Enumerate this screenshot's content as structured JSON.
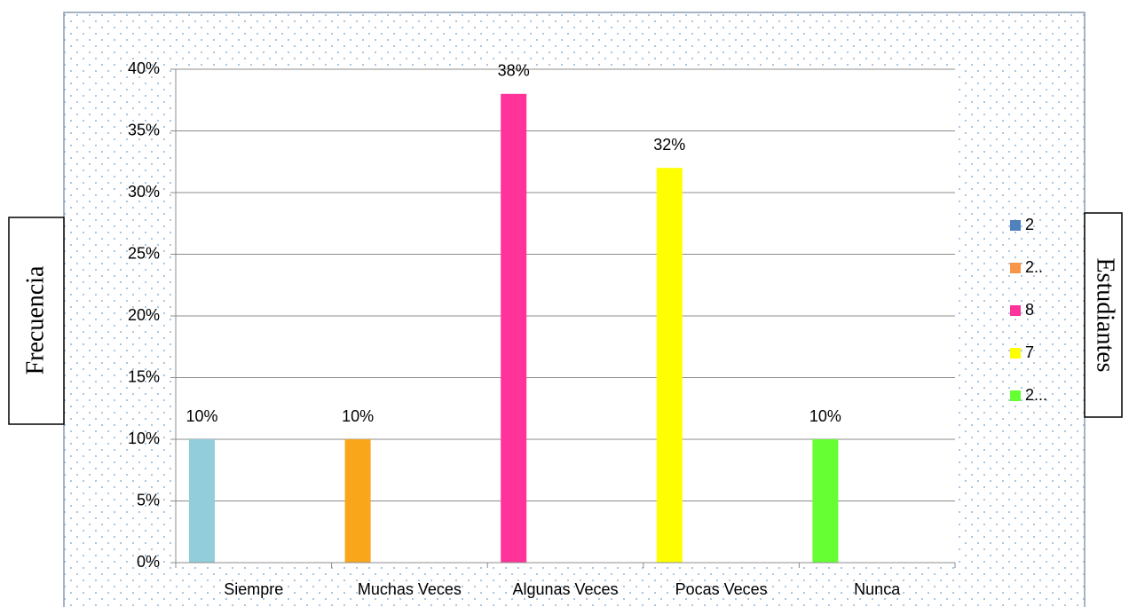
{
  "chart_data": {
    "type": "bar",
    "y_label": "Frecuencia",
    "side_label": "Estudiantes",
    "categories": [
      "Siempre",
      "Muchas Veces",
      "Algunas Veces",
      "Pocas Veces",
      "Nunca"
    ],
    "values": [
      10,
      10,
      38,
      32,
      10
    ],
    "value_labels": [
      "10%",
      "10%",
      "38%",
      "32%",
      "10%"
    ],
    "colors": [
      "#92cddc",
      "#f9a61a",
      "#ff3399",
      "#ffff00",
      "#66ff33"
    ],
    "ylim": [
      0,
      40
    ],
    "yticks": [
      {
        "value": 0,
        "label": "0%"
      },
      {
        "value": 5,
        "label": "5%"
      },
      {
        "value": 10,
        "label": "10%"
      },
      {
        "value": 15,
        "label": "15%"
      },
      {
        "value": 20,
        "label": "20%"
      },
      {
        "value": 25,
        "label": "25%"
      },
      {
        "value": 30,
        "label": "30%"
      },
      {
        "value": 35,
        "label": "35%"
      },
      {
        "value": 40,
        "label": "40%"
      }
    ],
    "grid": true,
    "legend": {
      "position": "right",
      "entries": [
        {
          "name": "2",
          "color": "#4f81bd"
        },
        {
          "name": "2..",
          "color": "#f79646"
        },
        {
          "name": "8",
          "color": "#ff3399"
        },
        {
          "name": "7",
          "color": "#ffff00"
        },
        {
          "name": "2...",
          "color": "#66ff33"
        }
      ]
    }
  }
}
